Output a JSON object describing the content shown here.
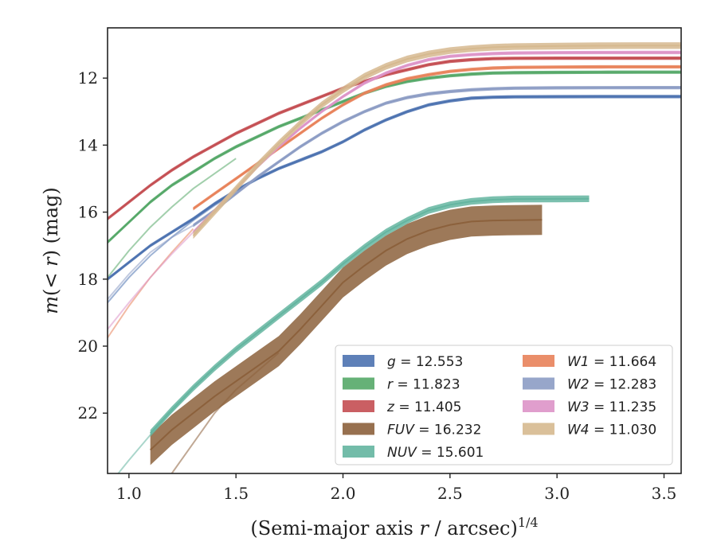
{
  "chart_data": {
    "type": "line",
    "title": "",
    "xlabel_main": "(Semi-major axis ",
    "xlabel_var": "r",
    "xlabel_tail": " / arcsec)",
    "xlabel_sup": "1/4",
    "ylabel_var1": "m",
    "ylabel_open": "(",
    "ylabel_lt": "< ",
    "ylabel_var2": "r",
    "ylabel_close": ") (mag)",
    "xlim": [
      0.9,
      3.58
    ],
    "ylim": [
      23.8,
      10.5
    ],
    "y_inverted": true,
    "grid": false,
    "legend_position": "lower-right",
    "xticks": [
      "1.0",
      "1.5",
      "2.0",
      "2.5",
      "3.0",
      "3.5"
    ],
    "xtick_values": [
      1.0,
      1.5,
      2.0,
      2.5,
      3.0,
      3.5
    ],
    "yticks": [
      "12",
      "14",
      "16",
      "18",
      "20",
      "22"
    ],
    "ytick_values": [
      12,
      14,
      16,
      18,
      20,
      22
    ],
    "series": [
      {
        "name": "g",
        "value": "12.553",
        "color": "#4c72b0",
        "band": 0.05,
        "x": [
          0.9,
          1.0,
          1.1,
          1.2,
          1.3,
          1.4,
          1.5,
          1.6,
          1.7,
          1.8,
          1.9,
          2.0,
          2.1,
          2.2,
          2.3,
          2.4,
          2.5,
          2.6,
          2.7,
          2.8,
          3.0,
          3.2,
          3.4,
          3.58
        ],
        "y": [
          18.0,
          17.5,
          17.0,
          16.6,
          16.2,
          15.75,
          15.35,
          15.0,
          14.7,
          14.45,
          14.2,
          13.9,
          13.55,
          13.25,
          13.0,
          12.8,
          12.68,
          12.6,
          12.57,
          12.56,
          12.555,
          12.553,
          12.553,
          12.553
        ]
      },
      {
        "name": "r",
        "value": "11.823",
        "color": "#55a868",
        "band": 0.05,
        "x": [
          0.9,
          1.0,
          1.1,
          1.2,
          1.3,
          1.4,
          1.5,
          1.6,
          1.7,
          1.8,
          1.9,
          2.0,
          2.1,
          2.2,
          2.3,
          2.4,
          2.5,
          2.6,
          2.7,
          2.8,
          3.0,
          3.2,
          3.4,
          3.58
        ],
        "y": [
          16.9,
          16.3,
          15.7,
          15.2,
          14.8,
          14.4,
          14.05,
          13.75,
          13.45,
          13.2,
          12.95,
          12.7,
          12.45,
          12.25,
          12.1,
          12.0,
          11.93,
          11.88,
          11.85,
          11.84,
          11.83,
          11.825,
          11.823,
          11.823
        ]
      },
      {
        "name": "z",
        "value": "11.405",
        "color": "#c44e52",
        "band": 0.05,
        "x": [
          0.9,
          1.0,
          1.1,
          1.2,
          1.3,
          1.4,
          1.5,
          1.6,
          1.7,
          1.8,
          1.9,
          2.0,
          2.1,
          2.2,
          2.3,
          2.4,
          2.5,
          2.6,
          2.7,
          2.8,
          3.0,
          3.2,
          3.4,
          3.58
        ],
        "y": [
          16.2,
          15.7,
          15.2,
          14.75,
          14.35,
          14.0,
          13.65,
          13.35,
          13.05,
          12.8,
          12.55,
          12.3,
          12.1,
          11.9,
          11.75,
          11.6,
          11.5,
          11.45,
          11.42,
          11.41,
          11.405,
          11.405,
          11.405,
          11.405
        ]
      },
      {
        "name": "FUV",
        "value": "16.232",
        "color": "#8c613c",
        "band": 0.45,
        "x": [
          1.1,
          1.2,
          1.3,
          1.4,
          1.5,
          1.6,
          1.7,
          1.8,
          1.9,
          2.0,
          2.1,
          2.2,
          2.3,
          2.4,
          2.5,
          2.6,
          2.7,
          2.8,
          2.93
        ],
        "y": [
          23.1,
          22.5,
          22.0,
          21.5,
          21.05,
          20.6,
          20.15,
          19.5,
          18.8,
          18.1,
          17.6,
          17.15,
          16.8,
          16.55,
          16.38,
          16.28,
          16.25,
          16.24,
          16.232
        ]
      },
      {
        "name": "NUV",
        "value": "15.601",
        "color": "#64b5a0",
        "band": 0.1,
        "x": [
          1.1,
          1.2,
          1.3,
          1.4,
          1.5,
          1.6,
          1.7,
          1.8,
          1.9,
          2.0,
          2.1,
          2.2,
          2.3,
          2.4,
          2.5,
          2.6,
          2.7,
          2.8,
          3.0,
          3.15
        ],
        "y": [
          22.6,
          21.9,
          21.25,
          20.65,
          20.1,
          19.6,
          19.1,
          18.6,
          18.1,
          17.55,
          17.05,
          16.6,
          16.25,
          15.95,
          15.78,
          15.68,
          15.63,
          15.61,
          15.605,
          15.601
        ]
      },
      {
        "name": "W1",
        "value": "11.664",
        "color": "#e8825a",
        "band": 0.05,
        "x": [
          1.3,
          1.4,
          1.5,
          1.6,
          1.7,
          1.8,
          1.9,
          2.0,
          2.1,
          2.2,
          2.3,
          2.4,
          2.5,
          2.6,
          2.7,
          2.8,
          3.0,
          3.2,
          3.4,
          3.58
        ],
        "y": [
          15.9,
          15.45,
          15.0,
          14.55,
          14.1,
          13.65,
          13.2,
          12.8,
          12.45,
          12.2,
          12.02,
          11.9,
          11.8,
          11.74,
          11.7,
          11.68,
          11.67,
          11.665,
          11.664,
          11.664
        ]
      },
      {
        "name": "W2",
        "value": "12.283",
        "color": "#8c9cc4",
        "band": 0.05,
        "x": [
          1.3,
          1.4,
          1.5,
          1.6,
          1.7,
          1.8,
          1.9,
          2.0,
          2.1,
          2.2,
          2.3,
          2.4,
          2.5,
          2.6,
          2.7,
          2.8,
          3.0,
          3.2,
          3.4,
          3.58
        ],
        "y": [
          16.4,
          15.95,
          15.45,
          14.95,
          14.5,
          14.05,
          13.65,
          13.3,
          13.0,
          12.75,
          12.58,
          12.47,
          12.4,
          12.35,
          12.32,
          12.3,
          12.29,
          12.285,
          12.283,
          12.283
        ]
      },
      {
        "name": "W3",
        "value": "11.235",
        "color": "#dd94c8",
        "band": 0.05,
        "x": [
          1.3,
          1.4,
          1.5,
          1.6,
          1.7,
          1.8,
          1.9,
          2.0,
          2.1,
          2.2,
          2.3,
          2.4,
          2.5,
          2.6,
          2.7,
          2.8,
          3.0,
          3.2,
          3.4,
          3.58
        ],
        "y": [
          16.6,
          15.95,
          15.3,
          14.65,
          14.05,
          13.5,
          13.0,
          12.55,
          12.15,
          11.85,
          11.62,
          11.45,
          11.35,
          11.3,
          11.27,
          11.25,
          11.24,
          11.237,
          11.235,
          11.235
        ]
      },
      {
        "name": "W4",
        "value": "11.030",
        "color": "#d6b98f",
        "band": 0.1,
        "x": [
          1.3,
          1.4,
          1.5,
          1.6,
          1.7,
          1.8,
          1.9,
          2.0,
          2.1,
          2.2,
          2.3,
          2.4,
          2.5,
          2.6,
          2.7,
          2.8,
          3.0,
          3.2,
          3.4,
          3.58
        ],
        "y": [
          16.7,
          16.0,
          15.3,
          14.6,
          13.95,
          13.35,
          12.8,
          12.35,
          11.95,
          11.65,
          11.43,
          11.28,
          11.18,
          11.12,
          11.08,
          11.06,
          11.045,
          11.035,
          11.03,
          11.03
        ]
      }
    ],
    "inner_extensions": [
      {
        "name": "g",
        "x": [
          0.9,
          1.0,
          1.1,
          1.2,
          1.3,
          1.4,
          1.5
        ],
        "y": [
          18.7,
          17.95,
          17.3,
          16.75,
          16.25,
          15.8,
          15.4
        ]
      },
      {
        "name": "r",
        "x": [
          0.9,
          1.0,
          1.1,
          1.2,
          1.3,
          1.4,
          1.5
        ],
        "y": [
          17.95,
          17.15,
          16.45,
          15.85,
          15.3,
          14.85,
          14.4
        ]
      },
      {
        "name": "W1",
        "x": [
          0.9,
          1.0,
          1.1,
          1.2,
          1.3
        ],
        "y": [
          19.75,
          18.8,
          17.95,
          17.2,
          16.5
        ]
      },
      {
        "name": "W2",
        "x": [
          0.9,
          1.0,
          1.1,
          1.2,
          1.3
        ],
        "y": [
          18.6,
          17.85,
          17.2,
          16.75,
          16.4
        ]
      },
      {
        "name": "W3",
        "x": [
          0.9,
          1.0,
          1.1,
          1.2,
          1.3
        ],
        "y": [
          19.5,
          18.7,
          17.95,
          17.25,
          16.6
        ]
      },
      {
        "name": "NUV",
        "x": [
          0.95,
          1.0,
          1.1,
          1.2,
          1.3,
          1.4
        ],
        "y": [
          23.8,
          23.4,
          22.65,
          21.95,
          21.25,
          20.65
        ]
      },
      {
        "name": "FUV",
        "x": [
          1.2,
          1.3,
          1.4,
          1.5,
          1.6,
          1.7
        ],
        "y": [
          23.8,
          22.9,
          22.0,
          21.3,
          20.75,
          20.2
        ]
      }
    ]
  }
}
